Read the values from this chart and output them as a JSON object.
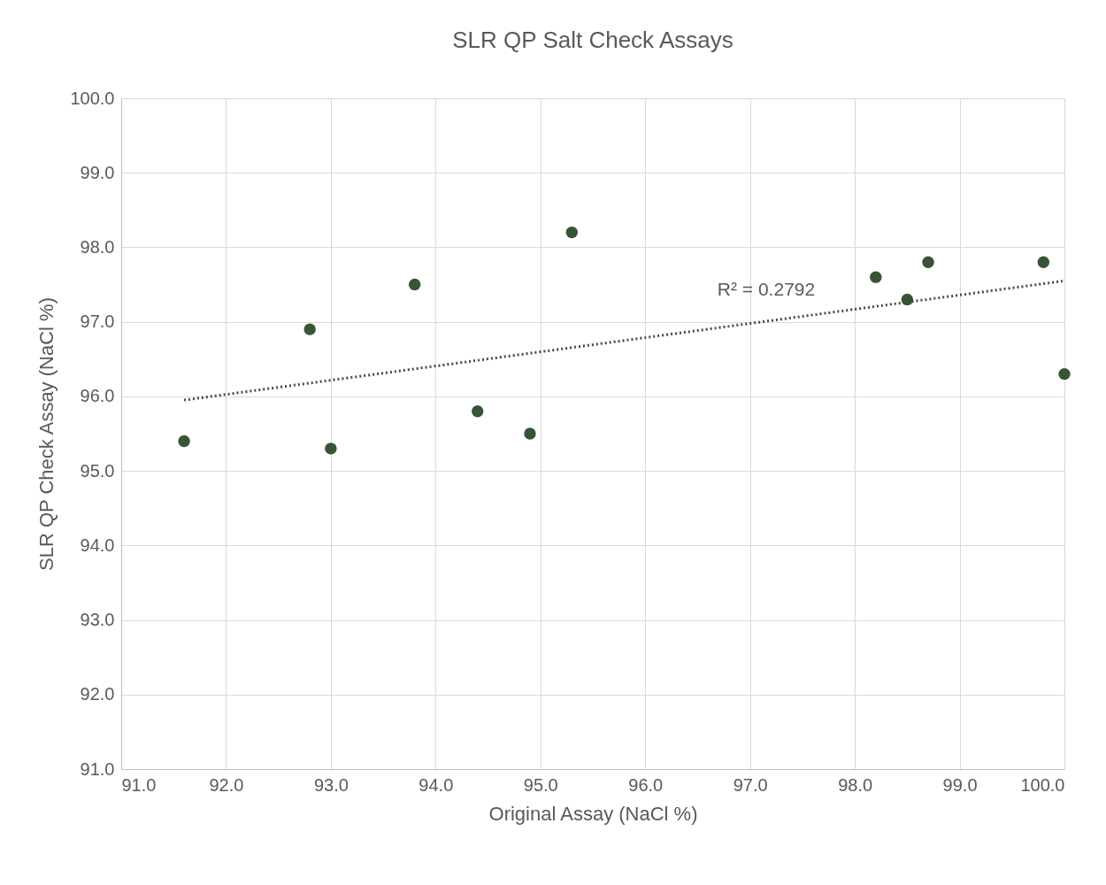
{
  "chart_data": {
    "type": "scatter",
    "title": "SLR QP Salt Check Assays",
    "xlabel": "Original Assay (NaCl %)",
    "ylabel": "SLR QP Check Assay (NaCl %)",
    "xlim": [
      91,
      100
    ],
    "ylim": [
      91,
      100
    ],
    "xticks": [
      {
        "value": 91,
        "label": "91.0"
      },
      {
        "value": 92,
        "label": "92.0"
      },
      {
        "value": 93,
        "label": "93.0"
      },
      {
        "value": 94,
        "label": "94.0"
      },
      {
        "value": 95,
        "label": "95.0"
      },
      {
        "value": 96,
        "label": "96.0"
      },
      {
        "value": 97,
        "label": "97.0"
      },
      {
        "value": 98,
        "label": "98.0"
      },
      {
        "value": 99,
        "label": "99.0"
      },
      {
        "value": 100,
        "label": "100.0"
      }
    ],
    "yticks": [
      {
        "value": 91,
        "label": "91.0"
      },
      {
        "value": 92,
        "label": "92.0"
      },
      {
        "value": 93,
        "label": "93.0"
      },
      {
        "value": 94,
        "label": "94.0"
      },
      {
        "value": 95,
        "label": "95.0"
      },
      {
        "value": 96,
        "label": "96.0"
      },
      {
        "value": 97,
        "label": "97.0"
      },
      {
        "value": 98,
        "label": "98.0"
      },
      {
        "value": 99,
        "label": "99.0"
      },
      {
        "value": 100,
        "label": "100.0"
      }
    ],
    "grid": true,
    "marker": "circle",
    "series": [
      {
        "color": "#375437",
        "x": [
          91.6,
          92.8,
          93.0,
          93.8,
          94.4,
          94.9,
          95.3,
          98.2,
          98.5,
          98.7,
          99.8,
          100.0
        ],
        "values": [
          95.4,
          96.9,
          95.3,
          97.5,
          95.8,
          95.5,
          98.2,
          97.6,
          97.3,
          97.8,
          97.8,
          96.3
        ]
      },
      {
        "type": "line",
        "color": "#375437",
        "line_style": "dotted",
        "marker": "none",
        "x": [
          91.6,
          100.0
        ],
        "values": [
          95.95,
          97.55
        ]
      }
    ],
    "annotations": [
      "R² = 0.2792"
    ]
  }
}
